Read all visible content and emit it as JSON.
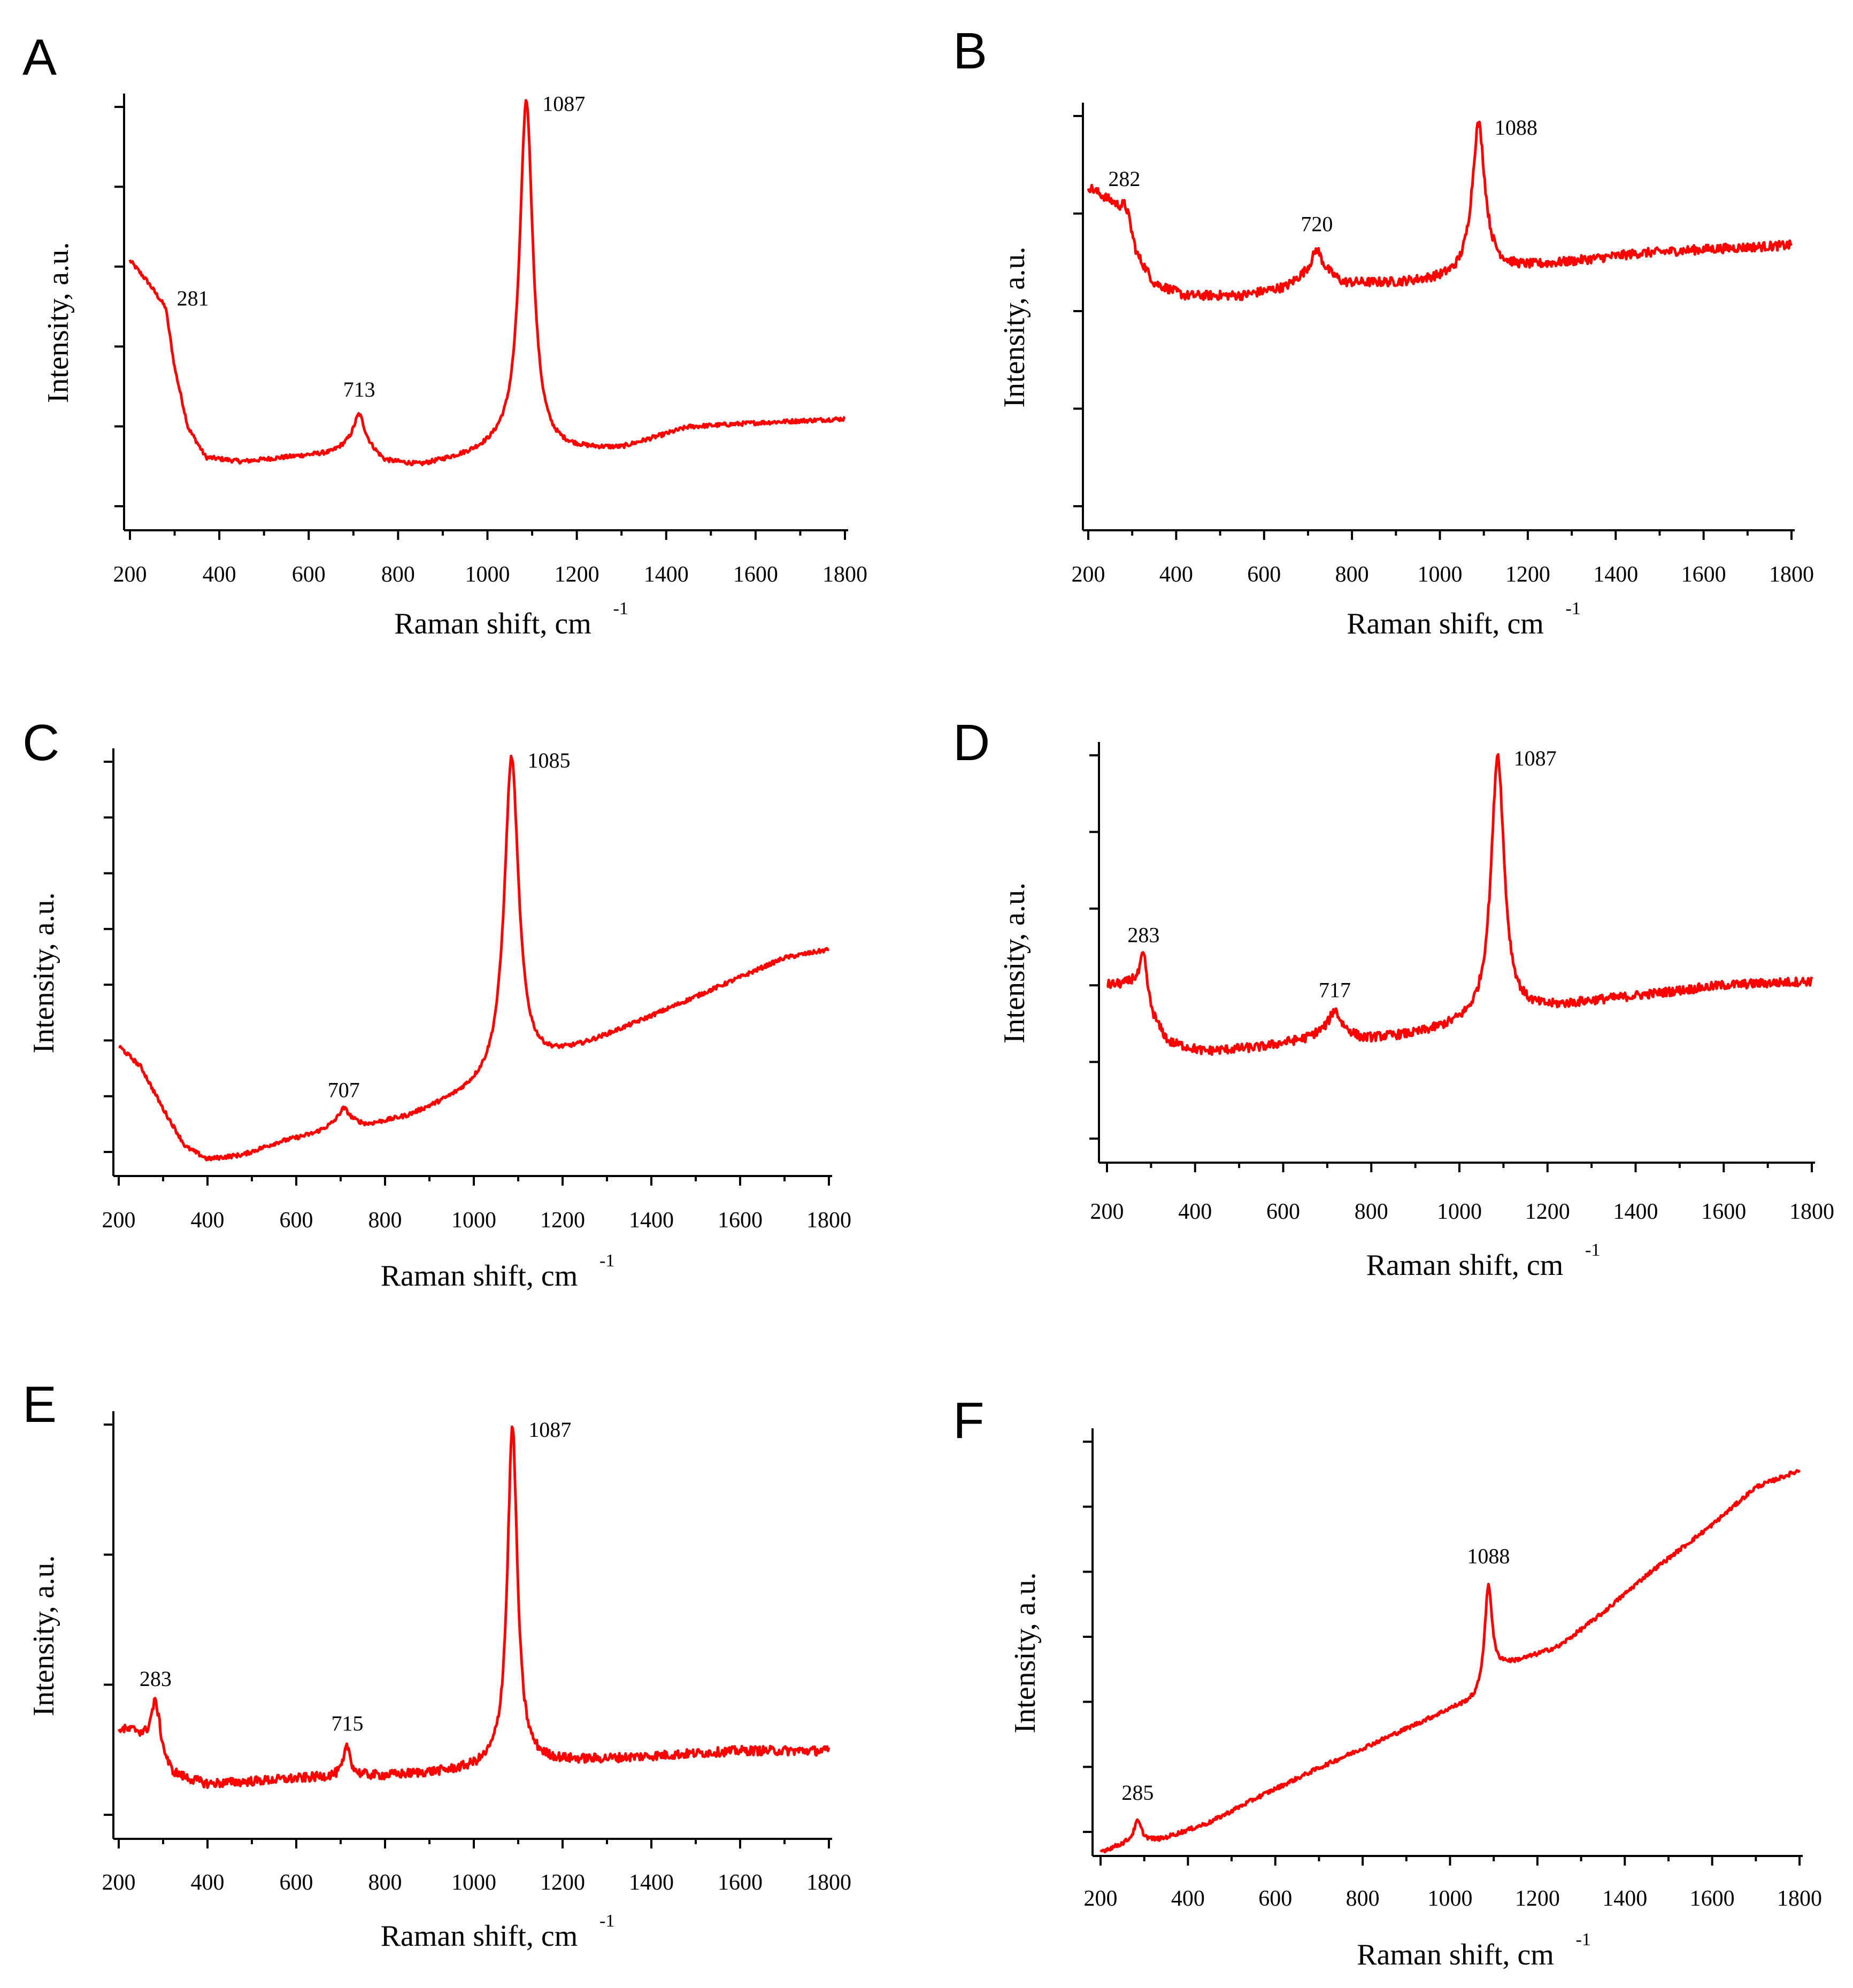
{
  "figure": {
    "line_color": "#ff0000"
  },
  "chart_data": [
    {
      "panel": "A",
      "type": "line",
      "xlabel": "Raman shift, cm",
      "xlabel_sup": "-1",
      "ylabel": "Intensity, a.u.",
      "xlim": [
        200,
        1800
      ],
      "ylim": [
        0,
        100
      ],
      "xticks": [
        "200",
        "400",
        "600",
        "800",
        "1000",
        "1200",
        "1400",
        "1600",
        "1800"
      ],
      "y_tick_count": 6,
      "baseline": [
        [
          200,
          63
        ],
        [
          240,
          58
        ],
        [
          280,
          52
        ],
        [
          300,
          38
        ],
        [
          330,
          24
        ],
        [
          370,
          17
        ],
        [
          450,
          16
        ],
        [
          550,
          17
        ],
        [
          650,
          18
        ],
        [
          713,
          21
        ],
        [
          770,
          16
        ],
        [
          850,
          15
        ],
        [
          950,
          17
        ],
        [
          1030,
          19
        ]
      ],
      "baseline_tail": [
        [
          1140,
          18
        ],
        [
          1300,
          19
        ],
        [
          1450,
          24
        ],
        [
          1600,
          25
        ],
        [
          1800,
          26
        ]
      ],
      "peaks": [
        {
          "x": 1087,
          "height": 82,
          "width": 24,
          "label": "1087"
        },
        {
          "x": 713,
          "height": 6,
          "width": 20,
          "label": "713"
        },
        {
          "x": 281,
          "height": 0,
          "width": 10,
          "label": "281"
        }
      ]
    },
    {
      "panel": "B",
      "type": "line",
      "xlabel": "Raman shift, cm",
      "xlabel_sup": "-1",
      "ylabel": "Intensity, a.u.",
      "xlim": [
        200,
        1800
      ],
      "ylim": [
        0,
        100
      ],
      "xticks": [
        "200",
        "400",
        "600",
        "800",
        "1000",
        "1200",
        "1400",
        "1600",
        "1800"
      ],
      "y_tick_count": 5,
      "baseline": [
        [
          200,
          82
        ],
        [
          260,
          78
        ],
        [
          290,
          75
        ],
        [
          310,
          66
        ],
        [
          350,
          59
        ],
        [
          420,
          56
        ],
        [
          550,
          56
        ],
        [
          650,
          58
        ],
        [
          720,
          63
        ],
        [
          780,
          59
        ],
        [
          900,
          59
        ],
        [
          1040,
          60
        ]
      ],
      "baseline_tail": [
        [
          1140,
          62
        ],
        [
          1300,
          64
        ],
        [
          1450,
          66
        ],
        [
          1600,
          67
        ],
        [
          1800,
          68
        ]
      ],
      "peaks": [
        {
          "x": 1088,
          "height": 36,
          "width": 24,
          "label": "1088"
        },
        {
          "x": 720,
          "height": 4,
          "width": 18,
          "label": "720"
        },
        {
          "x": 282,
          "height": 2,
          "width": 10,
          "label": "282"
        }
      ]
    },
    {
      "panel": "C",
      "type": "line",
      "xlabel": "Raman shift, cm",
      "xlabel_sup": "-1",
      "ylabel": "Intensity, a.u.",
      "xlim": [
        200,
        1800
      ],
      "ylim": [
        0,
        100
      ],
      "xticks": [
        "200",
        "400",
        "600",
        "800",
        "1000",
        "1200",
        "1400",
        "1600",
        "1800"
      ],
      "y_tick_count": 8,
      "baseline": [
        [
          200,
          31
        ],
        [
          250,
          26
        ],
        [
          300,
          16
        ],
        [
          350,
          7
        ],
        [
          400,
          4
        ],
        [
          480,
          5
        ],
        [
          560,
          8
        ],
        [
          640,
          10
        ],
        [
          707,
          13
        ],
        [
          760,
          12
        ],
        [
          850,
          14
        ],
        [
          950,
          18
        ],
        [
          1040,
          22
        ]
      ],
      "baseline_tail": [
        [
          1130,
          26
        ],
        [
          1250,
          31
        ],
        [
          1400,
          38
        ],
        [
          1550,
          45
        ],
        [
          1700,
          52
        ],
        [
          1800,
          54
        ]
      ],
      "peaks": [
        {
          "x": 1085,
          "height": 76,
          "width": 26,
          "label": "1085"
        },
        {
          "x": 707,
          "height": 3,
          "width": 20,
          "label": "707"
        }
      ]
    },
    {
      "panel": "D",
      "type": "line",
      "xlabel": "Raman shift, cm",
      "xlabel_sup": "-1",
      "ylabel": "Intensity, a.u.",
      "xlim": [
        200,
        1800
      ],
      "ylim": [
        0,
        100
      ],
      "xticks": [
        "200",
        "400",
        "600",
        "800",
        "1000",
        "1200",
        "1400",
        "1600",
        "1800"
      ],
      "y_tick_count": 6,
      "baseline": [
        [
          200,
          43
        ],
        [
          260,
          43
        ],
        [
          300,
          35
        ],
        [
          340,
          29
        ],
        [
          420,
          27
        ],
        [
          550,
          28
        ],
        [
          650,
          30
        ],
        [
          717,
          33
        ],
        [
          780,
          30
        ],
        [
          900,
          31
        ],
        [
          1040,
          34
        ]
      ],
      "baseline_tail": [
        [
          1140,
          36
        ],
        [
          1300,
          39
        ],
        [
          1450,
          41
        ],
        [
          1600,
          43
        ],
        [
          1800,
          44
        ]
      ],
      "peaks": [
        {
          "x": 1087,
          "height": 64,
          "width": 24,
          "label": "1087"
        },
        {
          "x": 717,
          "height": 4,
          "width": 18,
          "label": "717"
        },
        {
          "x": 283,
          "height": 12,
          "width": 14,
          "label": "283"
        }
      ]
    },
    {
      "panel": "E",
      "type": "line",
      "xlabel": "Raman shift, cm",
      "xlabel_sup": "-1",
      "ylabel": "Intensity, a.u.",
      "xlim": [
        200,
        1800
      ],
      "ylim": [
        0,
        100
      ],
      "xticks": [
        "200",
        "400",
        "600",
        "800",
        "1000",
        "1200",
        "1400",
        "1600",
        "1800"
      ],
      "y_tick_count": 4,
      "baseline": [
        [
          200,
          26
        ],
        [
          240,
          25
        ],
        [
          320,
          15
        ],
        [
          400,
          13
        ],
        [
          550,
          14
        ],
        [
          700,
          15
        ],
        [
          800,
          15
        ],
        [
          950,
          16
        ],
        [
          1040,
          17
        ]
      ],
      "baseline_tail": [
        [
          1140,
          18
        ],
        [
          1300,
          19
        ],
        [
          1450,
          20
        ],
        [
          1600,
          21
        ],
        [
          1800,
          21
        ]
      ],
      "peaks": [
        {
          "x": 1087,
          "height": 81,
          "width": 18,
          "label": "1087"
        },
        {
          "x": 715,
          "height": 7,
          "width": 12,
          "label": "715"
        },
        {
          "x": 283,
          "height": 13,
          "width": 18,
          "label": "283"
        }
      ]
    },
    {
      "panel": "F",
      "type": "line",
      "xlabel": "Raman shift, cm",
      "xlabel_sup": "-1",
      "ylabel": "Intensity, a.u.",
      "xlim": [
        200,
        1800
      ],
      "ylim": [
        0,
        100
      ],
      "xticks": [
        "200",
        "400",
        "600",
        "800",
        "1000",
        "1200",
        "1400",
        "1600",
        "1800"
      ],
      "y_tick_count": 7,
      "baseline": [
        [
          200,
          1
        ],
        [
          260,
          3
        ],
        [
          340,
          4
        ],
        [
          450,
          8
        ],
        [
          560,
          14
        ],
        [
          700,
          21
        ],
        [
          850,
          28
        ],
        [
          1000,
          35
        ],
        [
          1060,
          37
        ]
      ],
      "baseline_tail": [
        [
          1120,
          45
        ],
        [
          1250,
          50
        ],
        [
          1350,
          58
        ],
        [
          1450,
          67
        ],
        [
          1600,
          79
        ],
        [
          1700,
          88
        ],
        [
          1800,
          92
        ]
      ],
      "peaks": [
        {
          "x": 1088,
          "height": 24,
          "width": 14,
          "label": "1088"
        },
        {
          "x": 285,
          "height": 5,
          "width": 14,
          "label": "285"
        }
      ]
    }
  ]
}
